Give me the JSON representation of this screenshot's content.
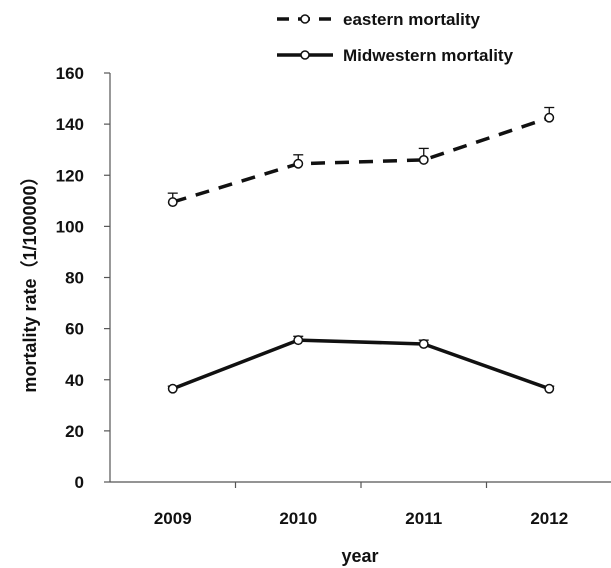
{
  "chart_data": {
    "type": "line",
    "xlabel": "year",
    "ylabel": "mortality rate（1/100000）",
    "categories": [
      "2009",
      "2010",
      "2011",
      "2012"
    ],
    "ylim": [
      0,
      160
    ],
    "yticks": [
      "0",
      "20",
      "40",
      "60",
      "80",
      "100",
      "120",
      "140",
      "160"
    ],
    "grid": false,
    "legend_position": "top-right",
    "series": [
      {
        "name": "eastern mortality",
        "style": "dashed",
        "color": "#111111",
        "values": [
          109.5,
          124.5,
          126,
          142.5
        ],
        "error": [
          3.5,
          3.5,
          4.5,
          4
        ]
      },
      {
        "name": "Midwestern mortality",
        "style": "solid",
        "color": "#111111",
        "values": [
          36.5,
          55.5,
          54,
          36.5
        ],
        "error": [
          1,
          1.5,
          1.5,
          1
        ]
      }
    ]
  }
}
